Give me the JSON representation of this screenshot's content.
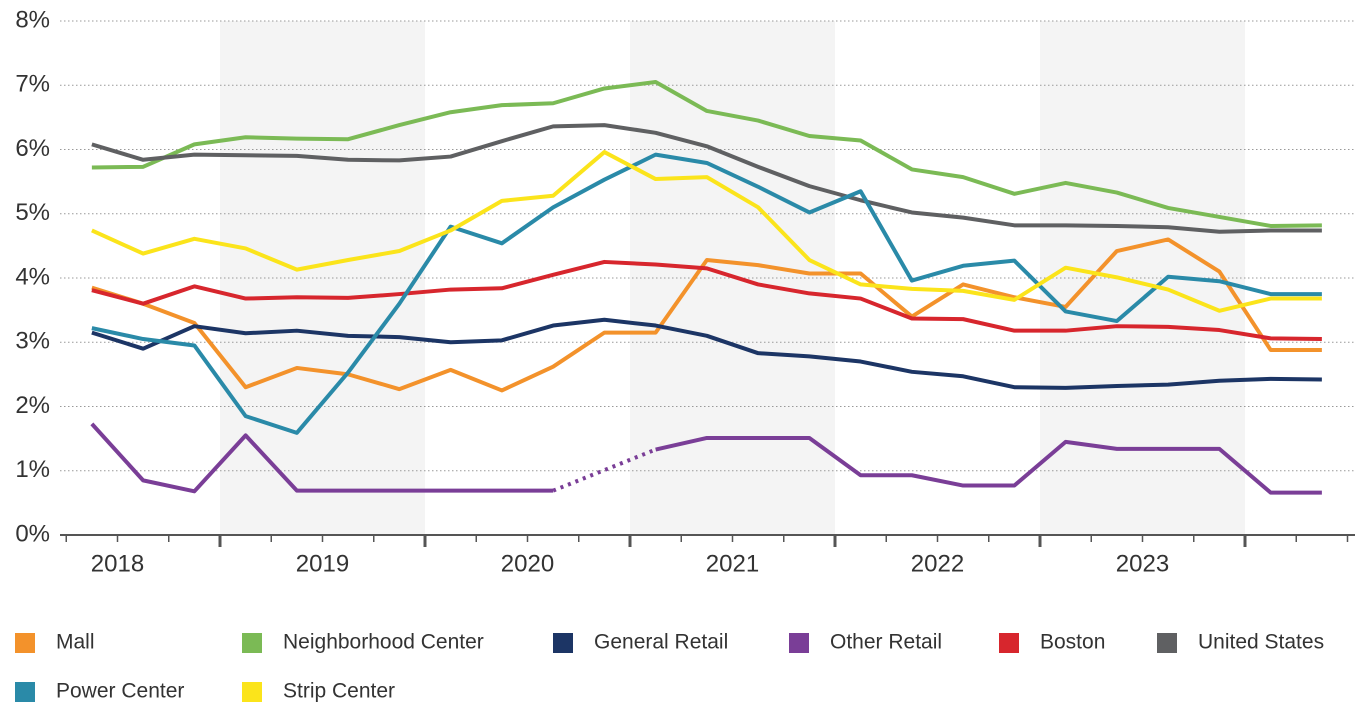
{
  "chart_data": {
    "type": "line",
    "x_labels": [
      "2018",
      "2019",
      "2020",
      "2021",
      "2022",
      "2023"
    ],
    "ylim": [
      0,
      8
    ],
    "yticks": [
      {
        "value": 0,
        "label": "0%"
      },
      {
        "value": 1,
        "label": "1%"
      },
      {
        "value": 2,
        "label": "2%"
      },
      {
        "value": 3,
        "label": "3%"
      },
      {
        "value": 4,
        "label": "4%"
      },
      {
        "value": 5,
        "label": "5%"
      },
      {
        "value": 6,
        "label": "6%"
      },
      {
        "value": 7,
        "label": "7%"
      },
      {
        "value": 8,
        "label": "8%"
      }
    ],
    "grid": true,
    "bridge_gaps": "dotted",
    "series": [
      {
        "name": "Mall",
        "color": "#f3922b",
        "values": [
          3.85,
          3.6,
          3.3,
          2.3,
          2.6,
          2.5,
          2.27,
          2.57,
          2.25,
          2.62,
          3.15,
          3.15,
          4.28,
          4.2,
          4.07,
          4.07,
          3.4,
          3.9,
          3.7,
          3.55,
          4.42,
          4.6,
          4.1,
          2.88,
          2.88
        ]
      },
      {
        "name": "Neighborhood Center",
        "color": "#7bba55",
        "values": [
          5.72,
          5.73,
          6.08,
          6.19,
          6.17,
          6.16,
          6.38,
          6.58,
          6.69,
          6.72,
          6.95,
          7.05,
          6.6,
          6.45,
          6.21,
          6.14,
          5.69,
          5.57,
          5.31,
          5.48,
          5.33,
          5.09,
          4.95,
          4.81,
          4.82
        ]
      },
      {
        "name": "General Retail",
        "color": "#1c3565",
        "values": [
          3.15,
          2.9,
          3.25,
          3.14,
          3.18,
          3.1,
          3.08,
          3.0,
          3.03,
          3.26,
          3.35,
          3.26,
          3.1,
          2.83,
          2.78,
          2.7,
          2.54,
          2.47,
          2.3,
          2.29,
          2.32,
          2.34,
          2.4,
          2.43,
          2.42
        ]
      },
      {
        "name": "Other Retail",
        "color": "#7a3e97",
        "values": [
          1.73,
          0.85,
          0.68,
          1.55,
          0.69,
          0.69,
          0.69,
          0.69,
          0.69,
          0.69,
          null,
          1.33,
          1.51,
          1.51,
          1.51,
          0.93,
          0.93,
          0.77,
          0.77,
          1.45,
          1.34,
          1.34,
          1.34,
          0.66,
          0.66
        ]
      },
      {
        "name": "Boston",
        "color": "#d7262d",
        "values": [
          3.81,
          3.6,
          3.87,
          3.68,
          3.7,
          3.69,
          3.75,
          3.82,
          3.84,
          4.05,
          4.25,
          4.21,
          4.15,
          3.9,
          3.76,
          3.68,
          3.37,
          3.36,
          3.18,
          3.18,
          3.25,
          3.24,
          3.19,
          3.06,
          3.05
        ]
      },
      {
        "name": "United States",
        "color": "#5f6062",
        "values": [
          6.08,
          5.84,
          5.92,
          5.91,
          5.9,
          5.84,
          5.83,
          5.89,
          6.13,
          6.36,
          6.38,
          6.26,
          6.05,
          5.73,
          5.43,
          5.21,
          5.02,
          4.94,
          4.82,
          4.82,
          4.81,
          4.79,
          4.72,
          4.74,
          4.74
        ]
      },
      {
        "name": "Power Center",
        "color": "#2a8aa8",
        "values": [
          3.22,
          3.05,
          2.95,
          1.85,
          1.59,
          2.53,
          3.6,
          4.8,
          4.54,
          5.1,
          5.53,
          5.92,
          5.79,
          5.42,
          5.02,
          5.35,
          3.96,
          4.19,
          4.27,
          3.48,
          3.33,
          4.02,
          3.95,
          3.75,
          3.75
        ]
      },
      {
        "name": "Strip Center",
        "color": "#fbe41b",
        "values": [
          4.74,
          4.38,
          4.61,
          4.46,
          4.13,
          4.28,
          4.42,
          4.74,
          5.2,
          5.28,
          5.96,
          5.54,
          5.57,
          5.1,
          4.28,
          3.9,
          3.83,
          3.8,
          3.66,
          4.16,
          4.01,
          3.82,
          3.49,
          3.68,
          3.68
        ]
      }
    ]
  }
}
